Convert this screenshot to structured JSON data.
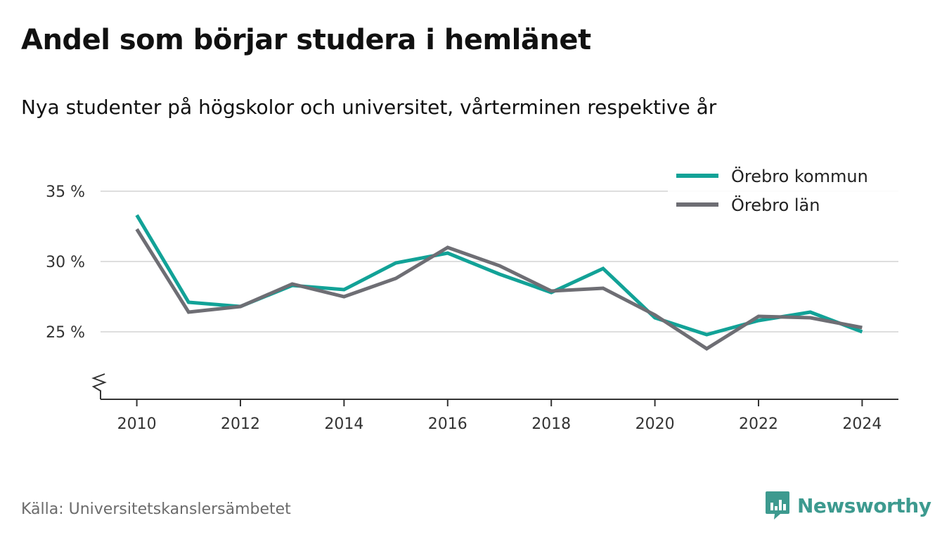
{
  "header": {
    "title": "Andel som börjar studera i hemlänet",
    "subtitle": "Nya studenter på högskolor och universitet, vårterminen respektive år"
  },
  "footer": {
    "source": "Källa: Universitetskanslersämbetet",
    "brand": "Newsworthy"
  },
  "colors": {
    "kommun": "#12a297",
    "lan": "#6e6e74",
    "grid": "#dedede",
    "axis": "#333333",
    "brand": "#3d9a8f"
  },
  "chart_data": {
    "type": "line",
    "title": "Andel som börjar studera i hemlänet",
    "subtitle": "Nya studenter på högskolor och universitet, vårterminen respektive år",
    "x": [
      2010,
      2011,
      2012,
      2013,
      2014,
      2015,
      2016,
      2017,
      2018,
      2019,
      2020,
      2021,
      2022,
      2023,
      2024
    ],
    "x_ticks": [
      {
        "value": 2010,
        "label": "2010"
      },
      {
        "value": 2012,
        "label": "2012"
      },
      {
        "value": 2014,
        "label": "2014"
      },
      {
        "value": 2016,
        "label": "2016"
      },
      {
        "value": 2018,
        "label": "2018"
      },
      {
        "value": 2020,
        "label": "2020"
      },
      {
        "value": 2022,
        "label": "2022"
      },
      {
        "value": 2024,
        "label": "2024"
      }
    ],
    "y_ticks": [
      {
        "value": 25,
        "label": "25 %"
      },
      {
        "value": 30,
        "label": "30 %"
      },
      {
        "value": 35,
        "label": "35 %"
      }
    ],
    "xlim": [
      2009.3,
      2024.7
    ],
    "ylim": [
      20.2,
      37
    ],
    "y_axis_break": true,
    "grid": "horizontal",
    "legend_position": "top-right",
    "series": [
      {
        "name": "Örebro kommun",
        "color_key": "kommun",
        "values": [
          33.3,
          27.1,
          26.8,
          28.3,
          28.0,
          29.9,
          30.6,
          29.1,
          27.8,
          29.5,
          26.0,
          24.8,
          25.8,
          26.4,
          25.0
        ]
      },
      {
        "name": "Örebro län",
        "color_key": "lan",
        "values": [
          32.3,
          26.4,
          26.8,
          28.4,
          27.5,
          28.8,
          31.0,
          29.7,
          27.9,
          28.1,
          26.2,
          23.8,
          26.1,
          26.0,
          25.3
        ]
      }
    ]
  }
}
